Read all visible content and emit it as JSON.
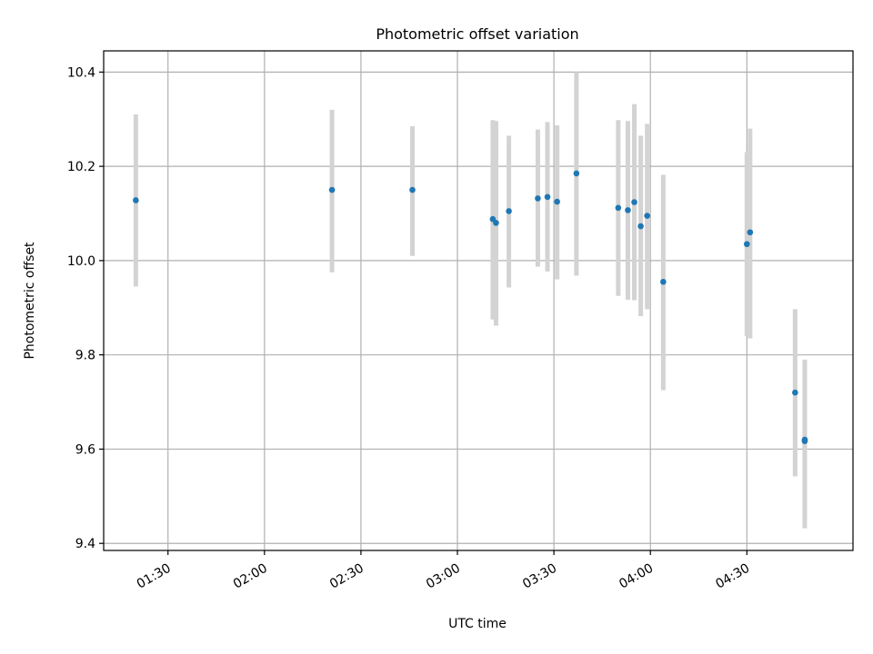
{
  "chart_data": {
    "type": "scatter",
    "title": "Photometric offset variation",
    "xlabel": "UTC time",
    "ylabel": "Photometric offset",
    "xlim": [
      "01:10",
      "05:03"
    ],
    "ylim": [
      9.385,
      10.445
    ],
    "grid": true,
    "x_ticks": [
      "01:30",
      "02:00",
      "02:30",
      "03:00",
      "03:30",
      "04:00",
      "04:30"
    ],
    "y_ticks": [
      "9.4",
      "9.6",
      "9.8",
      "10.0",
      "10.2",
      "10.4"
    ],
    "point_color": "#1f77b4",
    "errorbar_color": "#d3d3d3",
    "series": [
      {
        "points": [
          {
            "x": "01:20",
            "y": 10.128,
            "low": 9.945,
            "high": 10.31
          },
          {
            "x": "02:21",
            "y": 10.15,
            "low": 9.975,
            "high": 10.32
          },
          {
            "x": "02:46",
            "y": 10.15,
            "low": 10.01,
            "high": 10.285
          },
          {
            "x": "03:11",
            "y": 10.088,
            "low": 9.875,
            "high": 10.298
          },
          {
            "x": "03:12",
            "y": 10.08,
            "low": 9.862,
            "high": 10.296
          },
          {
            "x": "03:16",
            "y": 10.105,
            "low": 9.943,
            "high": 10.265
          },
          {
            "x": "03:25",
            "y": 10.132,
            "low": 9.987,
            "high": 10.278
          },
          {
            "x": "03:28",
            "y": 10.135,
            "low": 9.977,
            "high": 10.294
          },
          {
            "x": "03:31",
            "y": 10.125,
            "low": 9.96,
            "high": 10.287
          },
          {
            "x": "03:37",
            "y": 10.185,
            "low": 9.968,
            "high": 10.4
          },
          {
            "x": "03:50",
            "y": 10.112,
            "low": 9.925,
            "high": 10.298
          },
          {
            "x": "03:53",
            "y": 10.107,
            "low": 9.917,
            "high": 10.296
          },
          {
            "x": "03:55",
            "y": 10.124,
            "low": 9.916,
            "high": 10.332
          },
          {
            "x": "03:57",
            "y": 10.073,
            "low": 9.882,
            "high": 10.265
          },
          {
            "x": "03:59",
            "y": 10.095,
            "low": 9.897,
            "high": 10.29
          },
          {
            "x": "04:04",
            "y": 9.955,
            "low": 9.725,
            "high": 10.182
          },
          {
            "x": "04:30",
            "y": 10.035,
            "low": 9.84,
            "high": 10.23
          },
          {
            "x": "04:31",
            "y": 10.06,
            "low": 9.835,
            "high": 10.28
          },
          {
            "x": "04:45",
            "y": 9.72,
            "low": 9.542,
            "high": 9.897
          },
          {
            "x": "04:48",
            "y": 9.617,
            "low": 9.432,
            "high": 9.79
          },
          {
            "x": "04:48",
            "y": 9.62,
            "low": 9.45,
            "high": 9.787
          }
        ]
      }
    ]
  }
}
